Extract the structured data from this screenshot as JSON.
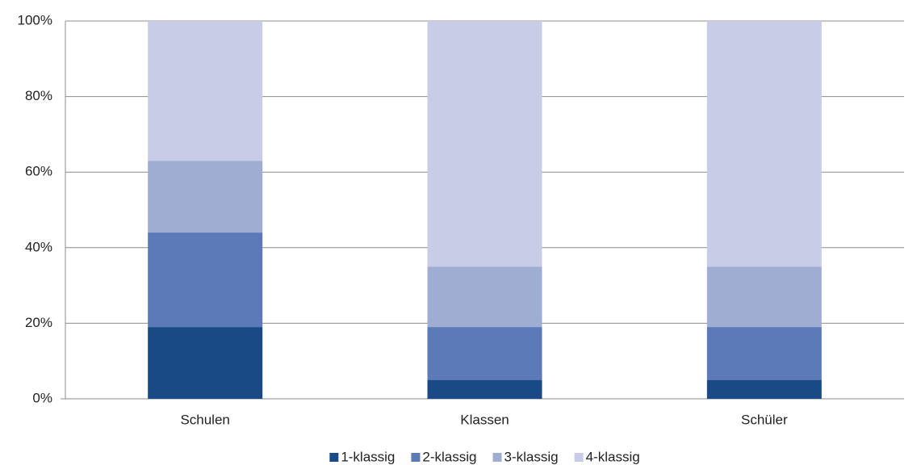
{
  "chart_data": {
    "type": "stacked_bar",
    "categories": [
      "Schulen",
      "Klassen",
      "Schüler"
    ],
    "series": [
      {
        "name": "1-klassig",
        "color": "#1a4a86",
        "values": [
          19,
          5,
          5
        ]
      },
      {
        "name": "2-klassig",
        "color": "#5b7ab7",
        "values": [
          25,
          14,
          14
        ]
      },
      {
        "name": "3-klassig",
        "color": "#a0add3",
        "values": [
          19,
          16,
          16
        ]
      },
      {
        "name": "4-klassig",
        "color": "#c8cce6",
        "values": [
          37,
          65,
          65
        ]
      }
    ],
    "ylim": [
      0,
      100
    ],
    "yticks": [
      {
        "value": 0,
        "label": "0%"
      },
      {
        "value": 20,
        "label": "20%"
      },
      {
        "value": 40,
        "label": "40%"
      },
      {
        "value": 60,
        "label": "60%"
      },
      {
        "value": 80,
        "label": "80%"
      },
      {
        "value": 100,
        "label": "100%"
      }
    ],
    "grid": true,
    "legend": "bottom"
  }
}
